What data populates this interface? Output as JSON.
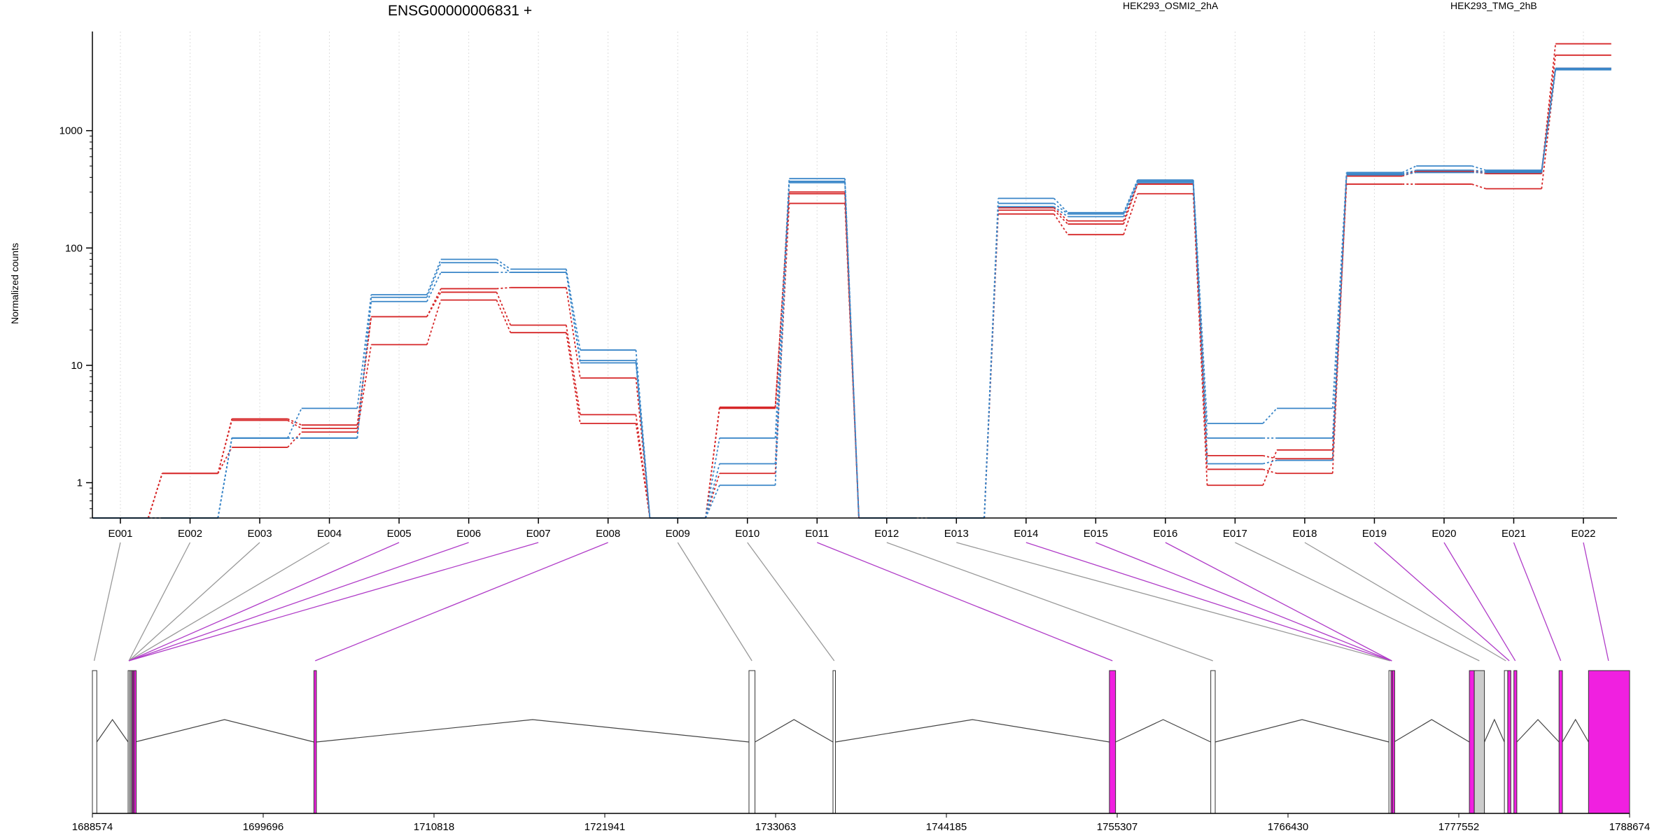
{
  "gene_title": "ENSG00000006831 +",
  "legend": [
    {
      "name": "HEK293_OSMI2_2hA",
      "color": "#d62728"
    },
    {
      "name": "HEK293_TMG_2hB",
      "color": "#3a86c8"
    }
  ],
  "colors": {
    "red": "#d62728",
    "blue": "#3a86c8",
    "exon_highlight": "#f020e0",
    "exon_gray": "#cccccc",
    "connector_gray": "#999999",
    "connector_magenta": "#b03cc8"
  },
  "chart_data": {
    "type": "line",
    "title": "ENSG00000006831 +",
    "ylabel": "Normalized counts",
    "xlabel": "",
    "yscale": "log",
    "ylim": [
      0.5,
      7000
    ],
    "yticks": [
      1,
      10,
      100,
      1000
    ],
    "ytick_labels": [
      "1",
      "10",
      "100",
      "1000"
    ],
    "grid": "vertical dotted per exon",
    "legend_placement": "top",
    "categories": [
      "E001",
      "E002",
      "E003",
      "E004",
      "E005",
      "E006",
      "E007",
      "E008",
      "E009",
      "E010",
      "E011",
      "E012",
      "E013",
      "E014",
      "E015",
      "E016",
      "E017",
      "E018",
      "E019",
      "E020",
      "E021",
      "E022"
    ],
    "series": [
      {
        "name": "HEK293_OSMI2_2hA",
        "color": "red",
        "values": [
          0.5,
          1.2,
          3.5,
          3.1,
          26,
          45,
          46,
          7.8,
          0.5,
          4.3,
          300,
          0.5,
          0.5,
          220,
          170,
          350,
          1.7,
          1.6,
          420,
          450,
          440,
          5500
        ]
      },
      {
        "name": "HEK293_OSMI2_2hA",
        "color": "red",
        "values": [
          0.5,
          1.2,
          3.4,
          2.9,
          26,
          42,
          22,
          3.8,
          0.5,
          4.4,
          290,
          0.5,
          0.5,
          210,
          160,
          350,
          1.3,
          1.2,
          410,
          450,
          430,
          4400
        ]
      },
      {
        "name": "HEK293_OSMI2_2hA",
        "color": "red",
        "values": [
          0.5,
          1.2,
          2.0,
          2.7,
          15,
          36,
          19,
          3.2,
          0.5,
          1.2,
          240,
          0.5,
          0.5,
          195,
          130,
          290,
          0.95,
          1.9,
          350,
          350,
          320,
          3400
        ]
      },
      {
        "name": "HEK293_TMG_2hB",
        "color": "blue",
        "values": [
          0.5,
          0.5,
          2.4,
          4.3,
          40,
          80,
          66,
          13.5,
          0.5,
          2.4,
          390,
          0.5,
          0.5,
          265,
          200,
          380,
          3.2,
          4.3,
          440,
          500,
          460,
          3400
        ]
      },
      {
        "name": "HEK293_TMG_2hB",
        "color": "blue",
        "values": [
          0.5,
          0.5,
          2.4,
          2.4,
          38,
          75,
          62,
          11,
          0.5,
          1.45,
          370,
          0.5,
          0.5,
          240,
          195,
          370,
          2.4,
          2.4,
          430,
          460,
          450,
          3300
        ]
      },
      {
        "name": "HEK293_TMG_2hB",
        "color": "blue",
        "values": [
          0.5,
          0.5,
          2.4,
          2.4,
          35,
          62,
          62,
          10.5,
          0.5,
          0.95,
          360,
          0.5,
          0.5,
          225,
          185,
          360,
          1.45,
          1.55,
          420,
          440,
          440,
          3350
        ]
      }
    ]
  },
  "gene_model": {
    "genomic_ticks": [
      "1688574",
      "1699696",
      "1710818",
      "1721941",
      "1733063",
      "1744185",
      "1755307",
      "1766430",
      "1777552",
      "1788674"
    ],
    "genomic_start": 1688574,
    "genomic_end": 1788674,
    "exons": [
      {
        "id": "E001",
        "start": 1688574,
        "end": 1688860,
        "highlight": false
      },
      {
        "id": "E002",
        "start": 1690900,
        "end": 1691000,
        "highlight": false
      },
      {
        "id": "E003",
        "start": 1691000,
        "end": 1691080,
        "highlight": false
      },
      {
        "id": "E004",
        "start": 1691080,
        "end": 1691150,
        "highlight": false
      },
      {
        "id": "E005",
        "start": 1691150,
        "end": 1691220,
        "highlight": true
      },
      {
        "id": "E006",
        "start": 1691220,
        "end": 1691290,
        "highlight": true
      },
      {
        "id": "E007",
        "start": 1691290,
        "end": 1691350,
        "highlight": true
      },
      {
        "id": "E008",
        "start": 1703000,
        "end": 1703160,
        "highlight": true
      },
      {
        "id": "E009",
        "start": 1731330,
        "end": 1731720,
        "highlight": false
      },
      {
        "id": "E010",
        "start": 1736800,
        "end": 1736960,
        "highlight": false
      },
      {
        "id": "E011",
        "start": 1754800,
        "end": 1755200,
        "highlight": true
      },
      {
        "id": "E012",
        "start": 1761400,
        "end": 1761690,
        "highlight": false
      },
      {
        "id": "E013",
        "start": 1773000,
        "end": 1773140,
        "highlight": false
      },
      {
        "id": "E014",
        "start": 1773140,
        "end": 1773240,
        "highlight": true
      },
      {
        "id": "E015",
        "start": 1773240,
        "end": 1773330,
        "highlight": true
      },
      {
        "id": "E016",
        "start": 1778240,
        "end": 1778560,
        "highlight": true
      },
      {
        "id": "E017",
        "start": 1778560,
        "end": 1779220,
        "highlight": false,
        "gray": true
      },
      {
        "id": "E018",
        "start": 1780520,
        "end": 1780740,
        "highlight": false
      },
      {
        "id": "E019",
        "start": 1780740,
        "end": 1780940,
        "highlight": true
      },
      {
        "id": "E020",
        "start": 1781140,
        "end": 1781330,
        "highlight": true
      },
      {
        "id": "E021",
        "start": 1784080,
        "end": 1784300,
        "highlight": true
      },
      {
        "id": "E022",
        "start": 1786000,
        "end": 1788674,
        "highlight": true
      }
    ],
    "connector_targets": [
      1688690,
      1690950,
      1690950,
      1690950,
      1690950,
      1690950,
      1690950,
      1703080,
      1731520,
      1736880,
      1755000,
      1761540,
      1773070,
      1773190,
      1773190,
      1773190,
      1778890,
      1780620,
      1780840,
      1781230,
      1784190,
      1787300
    ]
  }
}
